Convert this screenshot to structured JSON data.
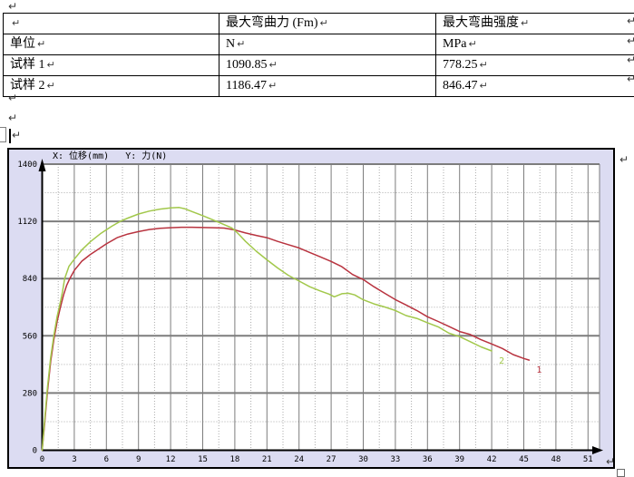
{
  "document": {
    "pilcrow_mark": "↵",
    "table": {
      "rows": [
        [
          "",
          "最大弯曲力 (Fm)",
          "最大弯曲强度"
        ],
        [
          "单位",
          "N",
          "MPa"
        ],
        [
          "试样 1",
          "1090.85",
          "778.25"
        ],
        [
          "试样 2",
          "1186.47",
          "846.47"
        ]
      ]
    }
  },
  "chart_data": {
    "type": "line",
    "title": "X: 位移(mm)   Y: 力(N)",
    "xlabel": "位移 (mm)",
    "ylabel": "力 (N)",
    "xlim": [
      0,
      52
    ],
    "ylim": [
      0,
      1400
    ],
    "x_ticks": [
      0,
      3,
      6,
      9,
      12,
      15,
      18,
      21,
      24,
      27,
      30,
      33,
      36,
      39,
      42,
      45,
      48,
      51
    ],
    "y_ticks": [
      0,
      280,
      560,
      840,
      1120,
      1400
    ],
    "grid": {
      "major_style": "solid",
      "minor_style": "dotted",
      "minor_x_step": 1.5,
      "minor_y_step": 140
    },
    "legend_position": "curve-end-labels",
    "colors": {
      "chart_background": "#dcdcf2",
      "plot_background": "#ffffff",
      "grid_major": "#7d7d7d",
      "grid_minor": "#ababab",
      "axis": "#000000"
    },
    "series": [
      {
        "name": "试样 1",
        "label": "1",
        "color": "#b8333f",
        "points": [
          [
            0,
            0
          ],
          [
            0.2,
            115
          ],
          [
            0.5,
            290
          ],
          [
            0.8,
            435
          ],
          [
            1.1,
            545
          ],
          [
            1.4,
            630
          ],
          [
            1.7,
            700
          ],
          [
            2,
            760
          ],
          [
            2.3,
            808
          ],
          [
            2.6,
            842
          ],
          [
            3,
            880
          ],
          [
            3.7,
            925
          ],
          [
            4.5,
            958
          ],
          [
            5,
            975
          ],
          [
            6,
            1010
          ],
          [
            7,
            1040
          ],
          [
            8,
            1058
          ],
          [
            9,
            1070
          ],
          [
            10,
            1080
          ],
          [
            11,
            1086
          ],
          [
            12,
            1089
          ],
          [
            13,
            1091
          ],
          [
            14,
            1091
          ],
          [
            15,
            1090
          ],
          [
            16,
            1089
          ],
          [
            17,
            1087
          ],
          [
            18,
            1078
          ],
          [
            19,
            1063
          ],
          [
            20,
            1051
          ],
          [
            21,
            1040
          ],
          [
            22,
            1022
          ],
          [
            23,
            1006
          ],
          [
            24,
            990
          ],
          [
            25,
            968
          ],
          [
            26,
            946
          ],
          [
            27,
            924
          ],
          [
            28,
            898
          ],
          [
            29,
            860
          ],
          [
            30,
            835
          ],
          [
            31,
            800
          ],
          [
            32,
            768
          ],
          [
            33,
            737
          ],
          [
            34,
            711
          ],
          [
            35,
            684
          ],
          [
            36,
            653
          ],
          [
            37,
            630
          ],
          [
            38,
            606
          ],
          [
            39,
            581
          ],
          [
            40,
            566
          ],
          [
            41,
            541
          ],
          [
            42,
            520
          ],
          [
            43,
            498
          ],
          [
            44,
            468
          ],
          [
            45,
            449
          ],
          [
            45.5,
            441
          ]
        ]
      },
      {
        "name": "试样 2",
        "label": "2",
        "color": "#a2c84b",
        "points": [
          [
            0,
            0
          ],
          [
            0.2,
            130
          ],
          [
            0.5,
            310
          ],
          [
            0.8,
            455
          ],
          [
            1.1,
            565
          ],
          [
            1.4,
            655
          ],
          [
            1.7,
            725
          ],
          [
            1.9,
            775
          ],
          [
            2.1,
            840
          ],
          [
            2.5,
            900
          ],
          [
            3,
            935
          ],
          [
            3.7,
            980
          ],
          [
            4.5,
            1020
          ],
          [
            5.5,
            1062
          ],
          [
            6.5,
            1096
          ],
          [
            7.3,
            1120
          ],
          [
            8,
            1136
          ],
          [
            9,
            1156
          ],
          [
            10,
            1170
          ],
          [
            11,
            1180
          ],
          [
            12,
            1186
          ],
          [
            12.8,
            1188
          ],
          [
            13.3,
            1182
          ],
          [
            14,
            1168
          ],
          [
            15,
            1148
          ],
          [
            16,
            1126
          ],
          [
            17,
            1104
          ],
          [
            17.7,
            1088
          ],
          [
            18,
            1076
          ],
          [
            18.5,
            1050
          ],
          [
            19,
            1022
          ],
          [
            20,
            974
          ],
          [
            21,
            932
          ],
          [
            22,
            892
          ],
          [
            23,
            856
          ],
          [
            24,
            828
          ],
          [
            25,
            800
          ],
          [
            26,
            779
          ],
          [
            26.8,
            764
          ],
          [
            27.3,
            751
          ],
          [
            28,
            766
          ],
          [
            28.6,
            768
          ],
          [
            29.2,
            760
          ],
          [
            30,
            736
          ],
          [
            31,
            716
          ],
          [
            32,
            701
          ],
          [
            33,
            684
          ],
          [
            34,
            659
          ],
          [
            35,
            645
          ],
          [
            36,
            624
          ],
          [
            37,
            604
          ],
          [
            38,
            573
          ],
          [
            39,
            556
          ],
          [
            40,
            531
          ],
          [
            41,
            506
          ],
          [
            42,
            486
          ]
        ]
      }
    ]
  }
}
